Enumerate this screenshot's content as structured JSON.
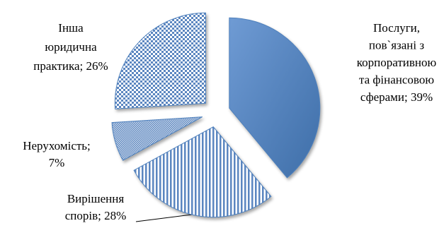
{
  "chart_data": {
    "type": "pie",
    "categories": [
      "Послуги, пов`язані з корпоративною та фінансовою сферами",
      "Вирішення спорів",
      "Нерухомість",
      "Інша юридична практика"
    ],
    "values": [
      39,
      28,
      7,
      26
    ],
    "value_labels": [
      "Послуги,\nпов`язані з\nкорпоративною\nта фінансовою\nсферами; 39%",
      "Вирішення\nспорів; 28%",
      "Нерухомість;\n7%",
      "Інша\nюридична\nпрактика; 26%"
    ],
    "colors": [
      "#4f81bd",
      "#4f81bd",
      "#4f81bd",
      "#4f81bd"
    ]
  }
}
